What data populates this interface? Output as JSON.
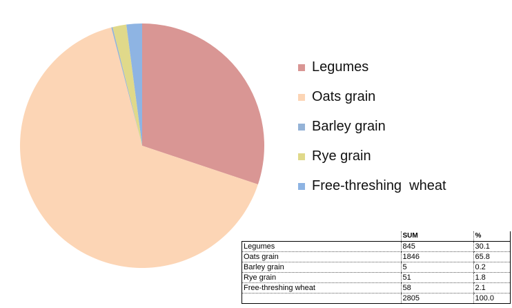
{
  "chart_data": {
    "type": "pie",
    "categories": [
      "Legumes",
      "Oats grain",
      "Barley grain",
      "Rye grain",
      "Free-threshing  wheat"
    ],
    "values": [
      845,
      1846,
      5,
      51,
      58
    ],
    "colors": [
      "#d99694",
      "#fcd5b5",
      "#95b3d7",
      "#e0d98a",
      "#8eb4e3"
    ],
    "legend_position": "right"
  },
  "table": {
    "headers": [
      "",
      "SUM",
      "%"
    ],
    "rows": [
      [
        "Legumes",
        "845",
        "30.1"
      ],
      [
        "Oats grain",
        "1846",
        "65.8"
      ],
      [
        "Barley grain",
        "5",
        "0.2"
      ],
      [
        "Rye grain",
        "51",
        "1.8"
      ],
      [
        "Free-threshing wheat",
        "58",
        "2.1"
      ]
    ],
    "total": [
      "",
      "2805",
      "100.0"
    ]
  }
}
